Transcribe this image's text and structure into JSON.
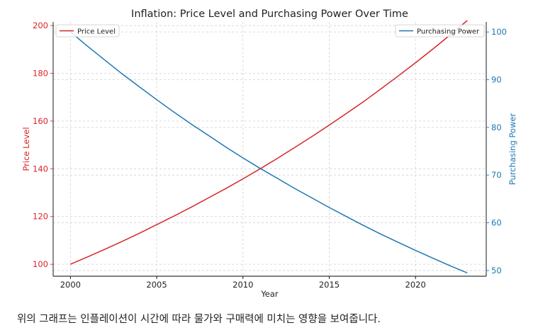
{
  "chart_data": {
    "type": "line",
    "title": "Inflation: Price Level and Purchasing Power Over Time",
    "xlabel": "Year",
    "x": [
      2000,
      2001,
      2002,
      2003,
      2004,
      2005,
      2006,
      2007,
      2008,
      2009,
      2010,
      2011,
      2012,
      2013,
      2014,
      2015,
      2016,
      2017,
      2018,
      2019,
      2020,
      2021,
      2022,
      2023
    ],
    "xlim": [
      1999.0,
      2024.1
    ],
    "xticks": [
      2000,
      2005,
      2010,
      2015,
      2020
    ],
    "grid": true,
    "left_axis": {
      "label": "Price Level",
      "color": "#d62728",
      "ylim": [
        95,
        201.5
      ],
      "ticks": [
        100,
        120,
        140,
        160,
        180,
        200
      ]
    },
    "right_axis": {
      "label": "Purchasing Power",
      "color": "#1f77b4",
      "ylim": [
        48.8,
        102.1
      ],
      "ticks": [
        50,
        60,
        70,
        80,
        90,
        100
      ]
    },
    "series": [
      {
        "name": "Price Level",
        "axis": "left",
        "color": "#d62728",
        "legend": "upper left",
        "values": [
          100.0,
          103.1,
          106.3,
          109.6,
          113.0,
          116.6,
          120.2,
          123.9,
          127.8,
          131.7,
          135.8,
          140.0,
          144.4,
          148.9,
          153.5,
          158.3,
          163.2,
          168.2,
          173.5,
          178.9,
          184.4,
          190.1,
          196.0,
          202.1
        ]
      },
      {
        "name": "Purchasing Power",
        "axis": "right",
        "color": "#1f77b4",
        "legend": "upper right",
        "values": [
          100.0,
          97.0,
          94.1,
          91.2,
          88.5,
          85.8,
          83.2,
          80.7,
          78.3,
          75.9,
          73.6,
          71.4,
          69.3,
          67.2,
          65.2,
          63.2,
          61.3,
          59.4,
          57.6,
          55.9,
          54.2,
          52.6,
          51.0,
          49.5
        ]
      }
    ]
  },
  "caption": "위의 그래프는 인플레이션이 시간에 따라 물가와 구매력에 미치는 영향을 보여줍니다."
}
